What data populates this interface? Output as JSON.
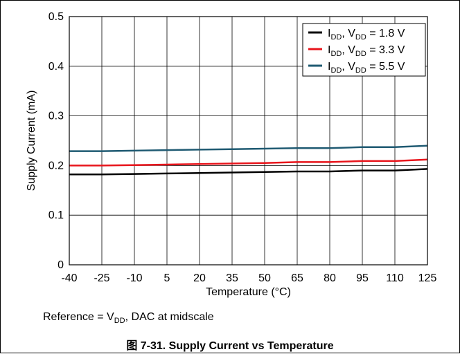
{
  "chart_data": {
    "type": "line",
    "xlabel": "Temperature (°C)",
    "ylabel": "Supply Current (mA)",
    "xlim": [
      -40,
      125
    ],
    "ylim": [
      0,
      0.5
    ],
    "x_ticks": [
      -40,
      -25,
      -10,
      5,
      20,
      35,
      50,
      65,
      80,
      95,
      110,
      125
    ],
    "y_ticks": [
      0,
      0.1,
      0.2,
      0.3,
      0.4,
      0.5
    ],
    "y_tick_labels": [
      "0",
      "0.1",
      "0.2",
      "0.3",
      "0.4",
      "0.5"
    ],
    "grid": true,
    "legend_position": "top-right",
    "x": [
      -40,
      -25,
      -10,
      5,
      20,
      35,
      50,
      65,
      80,
      95,
      110,
      125
    ],
    "series": [
      {
        "legend_main": "I",
        "legend_sub1": "DD",
        "legend_mid": ", V",
        "legend_sub2": "DD",
        "legend_tail": " = 1.8 V",
        "color": "#000000",
        "values": [
          0.182,
          0.182,
          0.183,
          0.184,
          0.185,
          0.186,
          0.187,
          0.188,
          0.188,
          0.19,
          0.19,
          0.193
        ]
      },
      {
        "legend_main": "I",
        "legend_sub1": "DD",
        "legend_mid": ", V",
        "legend_sub2": "DD",
        "legend_tail": " = 3.3 V",
        "color": "#e8141b",
        "values": [
          0.2,
          0.2,
          0.201,
          0.202,
          0.203,
          0.204,
          0.205,
          0.207,
          0.207,
          0.209,
          0.209,
          0.212
        ]
      },
      {
        "legend_main": "I",
        "legend_sub1": "DD",
        "legend_mid": ", V",
        "legend_sub2": "DD",
        "legend_tail": " = 5.5 V",
        "color": "#1f5a72",
        "values": [
          0.229,
          0.229,
          0.23,
          0.231,
          0.232,
          0.233,
          0.234,
          0.235,
          0.235,
          0.237,
          0.237,
          0.24
        ]
      }
    ]
  },
  "note": {
    "prefix": "Reference = V",
    "sub": "DD",
    "suffix": ", DAC at midscale"
  },
  "caption": "图 7-31. Supply Current vs Temperature"
}
